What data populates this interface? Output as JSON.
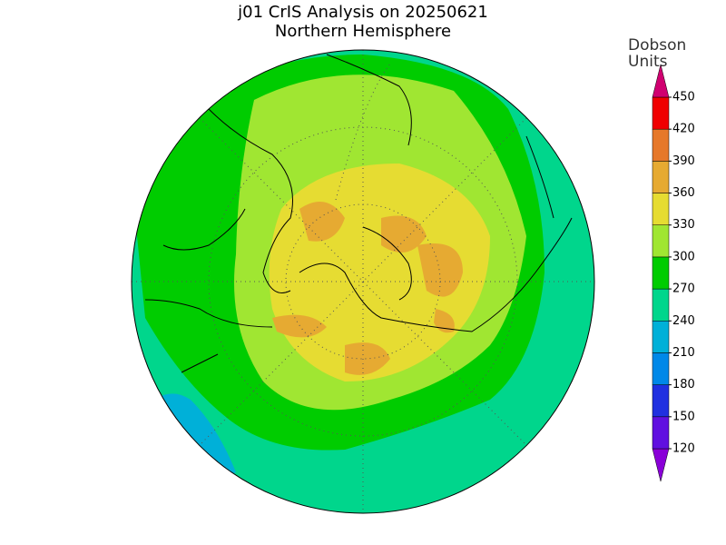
{
  "header": {
    "title": "j01 CrIS Analysis on 20250621",
    "subtitle": "Northern Hemisphere"
  },
  "colorbar": {
    "title_lines": [
      "Dobson",
      "Units"
    ],
    "ticks": [
      120,
      150,
      180,
      210,
      240,
      270,
      300,
      330,
      360,
      390,
      420,
      450
    ],
    "colors": [
      "#8a00d8",
      "#6010e0",
      "#2030e0",
      "#0088e8",
      "#00b0d8",
      "#00d68c",
      "#00cc00",
      "#a0e632",
      "#e6dc32",
      "#e6aa32",
      "#e6782a",
      "#f00000",
      "#d00070"
    ]
  }
}
